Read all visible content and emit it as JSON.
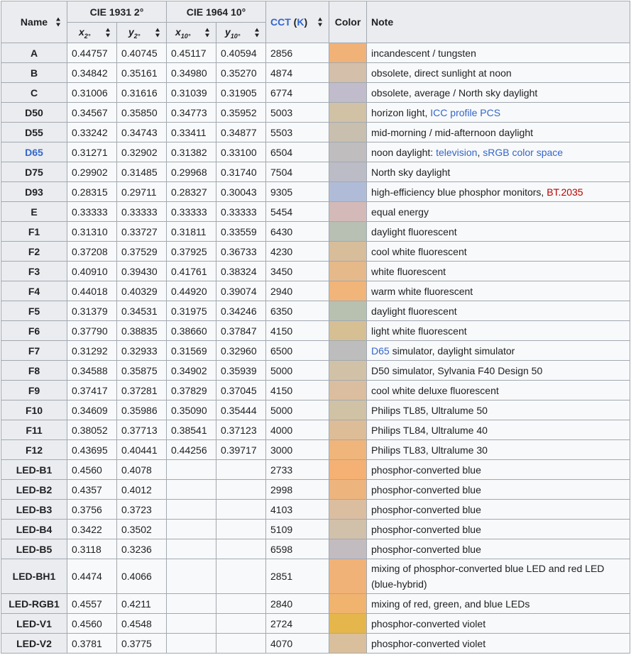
{
  "header": {
    "name": "Name",
    "cie1931": "CIE 1931 2°",
    "cie1964": "CIE 1964 10°",
    "cct_prefix": "CCT",
    "cct_unit": "K",
    "color": "Color",
    "note": "Note",
    "x2_base": "x",
    "x2_sub": "2°",
    "y2_base": "y",
    "y2_sub": "2°",
    "x10_base": "x",
    "x10_sub": "10°",
    "y10_base": "y",
    "y10_sub": "10°"
  },
  "rows": [
    {
      "name": "A",
      "x2": "0.44757",
      "y2": "0.40745",
      "x10": "0.45117",
      "y10": "0.40594",
      "cct": "2856",
      "color": "#f1b277",
      "note": [
        {
          "t": "incandescent / tungsten"
        }
      ]
    },
    {
      "name": "B",
      "x2": "0.34842",
      "y2": "0.35161",
      "x10": "0.34980",
      "y10": "0.35270",
      "cct": "4874",
      "color": "#d3bfaa",
      "note": [
        {
          "t": "obsolete, direct sunlight at noon"
        }
      ]
    },
    {
      "name": "C",
      "x2": "0.31006",
      "y2": "0.31616",
      "x10": "0.31039",
      "y10": "0.31905",
      "cct": "6774",
      "color": "#c1bccb",
      "note": [
        {
          "t": "obsolete, average / North sky daylight"
        }
      ]
    },
    {
      "name": "D50",
      "x2": "0.34567",
      "y2": "0.35850",
      "x10": "0.34773",
      "y10": "0.35952",
      "cct": "5003",
      "color": "#d1c2a6",
      "note": [
        {
          "t": "horizon light, "
        },
        {
          "t": "ICC profile PCS",
          "link": true
        }
      ]
    },
    {
      "name": "D55",
      "x2": "0.33242",
      "y2": "0.34743",
      "x10": "0.33411",
      "y10": "0.34877",
      "cct": "5503",
      "color": "#c9bfae",
      "note": [
        {
          "t": "mid-morning / mid-afternoon daylight"
        }
      ]
    },
    {
      "name": "D65",
      "name_link": true,
      "x2": "0.31271",
      "y2": "0.32902",
      "x10": "0.31382",
      "y10": "0.33100",
      "cct": "6504",
      "color": "#c0bdbe",
      "note": [
        {
          "t": "noon daylight: "
        },
        {
          "t": "television",
          "link": true
        },
        {
          "t": ", "
        },
        {
          "t": "sRGB color space",
          "link": true
        }
      ]
    },
    {
      "name": "D75",
      "x2": "0.29902",
      "y2": "0.31485",
      "x10": "0.29968",
      "y10": "0.31740",
      "cct": "7504",
      "color": "#bbbcc6",
      "note": [
        {
          "t": "North sky daylight"
        }
      ]
    },
    {
      "name": "D93",
      "x2": "0.28315",
      "y2": "0.29711",
      "x10": "0.28327",
      "y10": "0.30043",
      "cct": "9305",
      "color": "#b0bcd7",
      "note": [
        {
          "t": "high-efficiency blue phosphor monitors, "
        },
        {
          "t": "BT.2035",
          "link": true,
          "red": true
        }
      ]
    },
    {
      "name": "E",
      "x2": "0.33333",
      "y2": "0.33333",
      "x10": "0.33333",
      "y10": "0.33333",
      "cct": "5454",
      "color": "#d3bab8",
      "note": [
        {
          "t": "equal energy"
        }
      ]
    },
    {
      "name": "F1",
      "x2": "0.31310",
      "y2": "0.33727",
      "x10": "0.31811",
      "y10": "0.33559",
      "cct": "6430",
      "color": "#b8bfb3",
      "note": [
        {
          "t": "daylight fluorescent"
        }
      ]
    },
    {
      "name": "F2",
      "x2": "0.37208",
      "y2": "0.37529",
      "x10": "0.37925",
      "y10": "0.36733",
      "cct": "4230",
      "color": "#d8bd9b",
      "note": [
        {
          "t": "cool white fluorescent"
        }
      ]
    },
    {
      "name": "F3",
      "x2": "0.40910",
      "y2": "0.39430",
      "x10": "0.41761",
      "y10": "0.38324",
      "cct": "3450",
      "color": "#e5b989",
      "note": [
        {
          "t": "white fluorescent"
        }
      ]
    },
    {
      "name": "F4",
      "x2": "0.44018",
      "y2": "0.40329",
      "x10": "0.44920",
      "y10": "0.39074",
      "cct": "2940",
      "color": "#f1b479",
      "note": [
        {
          "t": "warm white fluorescent"
        }
      ]
    },
    {
      "name": "F5",
      "x2": "0.31379",
      "y2": "0.34531",
      "x10": "0.31975",
      "y10": "0.34246",
      "cct": "6350",
      "color": "#b8c0b0",
      "note": [
        {
          "t": "daylight fluorescent"
        }
      ]
    },
    {
      "name": "F6",
      "x2": "0.37790",
      "y2": "0.38835",
      "x10": "0.38660",
      "y10": "0.37847",
      "cct": "4150",
      "color": "#d7bf94",
      "note": [
        {
          "t": "light white fluorescent"
        }
      ]
    },
    {
      "name": "F7",
      "x2": "0.31292",
      "y2": "0.32933",
      "x10": "0.31569",
      "y10": "0.32960",
      "cct": "6500",
      "color": "#bebdbd",
      "note": [
        {
          "t": "D65",
          "link": true
        },
        {
          "t": " simulator, daylight simulator"
        }
      ]
    },
    {
      "name": "F8",
      "x2": "0.34588",
      "y2": "0.35875",
      "x10": "0.34902",
      "y10": "0.35939",
      "cct": "5000",
      "color": "#d1c2a7",
      "note": [
        {
          "t": "D50 simulator, Sylvania F40 Design 50"
        }
      ]
    },
    {
      "name": "F9",
      "x2": "0.37417",
      "y2": "0.37281",
      "x10": "0.37829",
      "y10": "0.37045",
      "cct": "4150",
      "color": "#dbbe9f",
      "note": [
        {
          "t": "cool white deluxe fluorescent"
        }
      ]
    },
    {
      "name": "F10",
      "x2": "0.34609",
      "y2": "0.35986",
      "x10": "0.35090",
      "y10": "0.35444",
      "cct": "5000",
      "color": "#d0c2a5",
      "note": [
        {
          "t": "Philips TL85, Ultralume 50"
        }
      ]
    },
    {
      "name": "F11",
      "x2": "0.38052",
      "y2": "0.37713",
      "x10": "0.38541",
      "y10": "0.37123",
      "cct": "4000",
      "color": "#dcbd98",
      "note": [
        {
          "t": "Philips TL84, Ultralume 40"
        }
      ]
    },
    {
      "name": "F12",
      "x2": "0.43695",
      "y2": "0.40441",
      "x10": "0.44256",
      "y10": "0.39717",
      "cct": "3000",
      "color": "#efb57b",
      "note": [
        {
          "t": "Philips TL83, Ultralume 30"
        }
      ]
    },
    {
      "name": "LED-B1",
      "x2": "0.4560",
      "y2": "0.4078",
      "x10": "",
      "y10": "",
      "cct": "2733",
      "color": "#f4b173",
      "note": [
        {
          "t": "phosphor-converted blue"
        }
      ]
    },
    {
      "name": "LED-B2",
      "x2": "0.4357",
      "y2": "0.4012",
      "x10": "",
      "y10": "",
      "cct": "2998",
      "color": "#eeb47e",
      "note": [
        {
          "t": "phosphor-converted blue"
        }
      ]
    },
    {
      "name": "LED-B3",
      "x2": "0.3756",
      "y2": "0.3723",
      "x10": "",
      "y10": "",
      "cct": "4103",
      "color": "#dbbea0",
      "note": [
        {
          "t": "phosphor-converted blue"
        }
      ]
    },
    {
      "name": "LED-B4",
      "x2": "0.3422",
      "y2": "0.3502",
      "x10": "",
      "y10": "",
      "cct": "5109",
      "color": "#d1c0aa",
      "note": [
        {
          "t": "phosphor-converted blue"
        }
      ]
    },
    {
      "name": "LED-B5",
      "x2": "0.3118",
      "y2": "0.3236",
      "x10": "",
      "y10": "",
      "cct": "6598",
      "color": "#c2bcc1",
      "note": [
        {
          "t": "phosphor-converted blue"
        }
      ]
    },
    {
      "name": "LED-BH1",
      "x2": "0.4474",
      "y2": "0.4066",
      "x10": "",
      "y10": "",
      "cct": "2851",
      "color": "#f1b277",
      "tall": true,
      "note": [
        {
          "t": "mixing of phosphor-converted blue LED and red LED (blue-hybrid)"
        }
      ]
    },
    {
      "name": "LED-RGB1",
      "x2": "0.4557",
      "y2": "0.4211",
      "x10": "",
      "y10": "",
      "cct": "2840",
      "color": "#f0b46f",
      "note": [
        {
          "t": "mixing of red, green, and blue LEDs"
        }
      ]
    },
    {
      "name": "LED-V1",
      "x2": "0.4560",
      "y2": "0.4548",
      "x10": "",
      "y10": "",
      "cct": "2724",
      "color": "#e4b64c",
      "note": [
        {
          "t": "phosphor-converted violet"
        }
      ]
    },
    {
      "name": "LED-V2",
      "x2": "0.3781",
      "y2": "0.3775",
      "x10": "",
      "y10": "",
      "cct": "4070",
      "color": "#d9bf9c",
      "note": [
        {
          "t": "phosphor-converted violet"
        }
      ]
    }
  ]
}
